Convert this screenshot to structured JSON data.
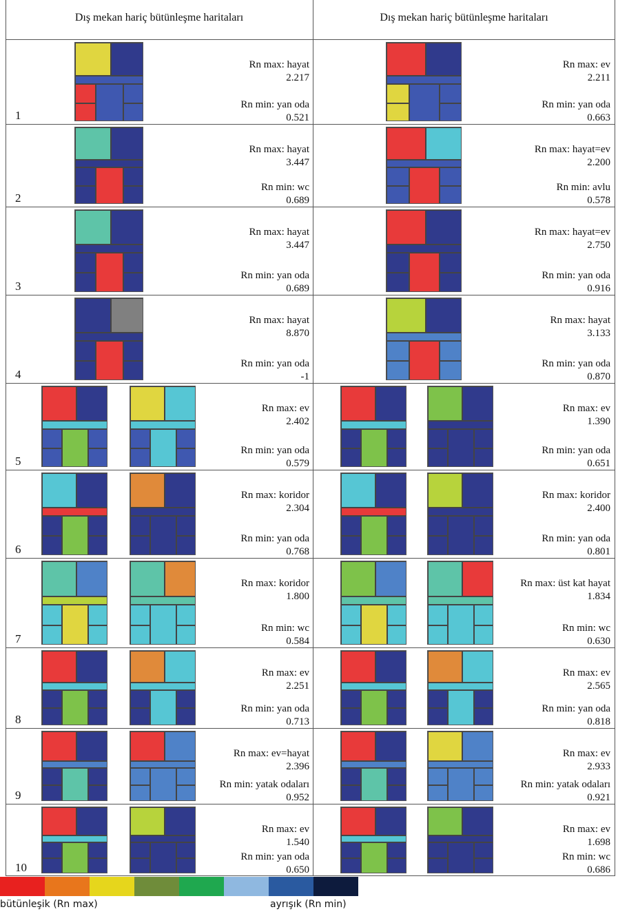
{
  "headers": {
    "left": "Dış mekan hariç bütünleşme haritaları",
    "right": "Dış mekan hariç bütünleşme haritaları"
  },
  "rows": [
    {
      "num": "1",
      "left": {
        "max_label": "Rn max: hayat",
        "max_value": "2.217",
        "min_label": "Rn min: yan oda",
        "min_value": "0.521"
      },
      "right": {
        "max_label": "Rn max: ev",
        "max_value": "2.211",
        "min_label": "Rn min: yan oda",
        "min_value": "0.663"
      }
    },
    {
      "num": "2",
      "left": {
        "max_label": "Rn max: hayat",
        "max_value": "3.447",
        "min_label": "Rn min: wc",
        "min_value": "0.689"
      },
      "right": {
        "max_label": "Rn max: hayat=ev",
        "max_value": "2.200",
        "min_label": "Rn min: avlu",
        "min_value": "0.578"
      }
    },
    {
      "num": "3",
      "left": {
        "max_label": "Rn max: hayat",
        "max_value": "3.447",
        "min_label": "Rn min: yan oda",
        "min_value": "0.689"
      },
      "right": {
        "max_label": "Rn max: hayat=ev",
        "max_value": "2.750",
        "min_label": "Rn min: yan oda",
        "min_value": "0.916"
      }
    },
    {
      "num": "4",
      "left": {
        "max_label": "Rn max: hayat",
        "max_value": "8.870",
        "min_label": "Rn min: yan oda",
        "min_value": "-1"
      },
      "right": {
        "max_label": "Rn max: hayat",
        "max_value": "3.133",
        "min_label": "Rn min: yan oda",
        "min_value": "0.870"
      }
    },
    {
      "num": "5",
      "left": {
        "max_label": "Rn max: ev",
        "max_value": "2.402",
        "min_label": "Rn min: yan oda",
        "min_value": "0.579"
      },
      "right": {
        "max_label": "Rn max: ev",
        "max_value": "1.390",
        "min_label": "Rn min: yan oda",
        "min_value": "0.651"
      }
    },
    {
      "num": "6",
      "left": {
        "max_label": "Rn max: koridor",
        "max_value": "2.304",
        "min_label": "Rn min: yan oda",
        "min_value": "0.768"
      },
      "right": {
        "max_label": "Rn max: koridor",
        "max_value": "2.400",
        "min_label": "Rn min: yan oda",
        "min_value": "0.801"
      }
    },
    {
      "num": "7",
      "left": {
        "max_label": "Rn max:  koridor",
        "max_value": "1.800",
        "min_label": "Rn min: wc",
        "min_value": "0.584"
      },
      "right": {
        "max_label": "Rn max:  üst kat hayat",
        "max_value": "1.834",
        "min_label": "Rn min: wc",
        "min_value": "0.630"
      }
    },
    {
      "num": "8",
      "left": {
        "max_label": "Rn max: ev",
        "max_value": "2.251",
        "min_label": "Rn min: yan oda",
        "min_value": "0.713"
      },
      "right": {
        "max_label": "Rn max: ev",
        "max_value": "2.565",
        "min_label": "Rn min: yan oda",
        "min_value": "0.818"
      }
    },
    {
      "num": "9",
      "left": {
        "max_label": "Rn max: ev=hayat",
        "max_value": "2.396",
        "min_label": "Rn min: yatak odaları",
        "min_value": "0.952"
      },
      "right": {
        "max_label": "Rn max: ev",
        "max_value": "2.933",
        "min_label": "Rn min: yatak odaları",
        "min_value": "0.921"
      }
    },
    {
      "num": "10",
      "left": {
        "max_label": "Rn max: ev",
        "max_value": "1.540",
        "min_label": "Rn min: yan oda",
        "min_value": "0.650"
      },
      "right": {
        "max_label": "Rn max: ev",
        "max_value": "1.698",
        "min_label": "Rn min: wc",
        "min_value": "0.686"
      }
    }
  ],
  "legend": {
    "colors": [
      "#e8211f",
      "#e8761c",
      "#e6d61c",
      "#6f8c3a",
      "#1fa84f",
      "#8fb8e0",
      "#2a5aa0",
      "#0d1b3d"
    ],
    "left_label": "bütünleşik (Rn max)",
    "right_label": "ayrışık (Rn min)"
  },
  "palette": {
    "red": "#e83a3a",
    "orange": "#e08a3a",
    "yellow": "#e0d640",
    "lime": "#b7d33c",
    "green": "#7ec24a",
    "teal": "#5ec4a8",
    "cyan": "#56c6d4",
    "lblue": "#4f82c8",
    "blue": "#3f58b0",
    "navy": "#303a8c",
    "gray": "#808080"
  },
  "plans": [
    {
      "left": [
        [
          "yellow",
          "navy",
          "blue",
          "red",
          "blue",
          "blue",
          "cyan"
        ]
      ],
      "right": [
        [
          "red",
          "navy",
          "blue",
          "yellow",
          "blue",
          "blue",
          "cyan"
        ]
      ]
    },
    {
      "left": [
        [
          "teal",
          "navy",
          "red",
          "navy",
          "navy",
          "navy"
        ]
      ],
      "right": [
        [
          "red",
          "cyan",
          "red",
          "blue",
          "blue",
          "blue"
        ]
      ]
    },
    {
      "left": [
        [
          "teal",
          "navy",
          "red",
          "navy",
          "navy",
          "navy"
        ]
      ],
      "right": [
        [
          "red",
          "navy",
          "red",
          "navy",
          "navy",
          "navy"
        ]
      ]
    },
    {
      "left": [
        [
          "navy",
          "gray",
          "red",
          "navy",
          "navy",
          "navy"
        ]
      ],
      "right": [
        [
          "lime",
          "navy",
          "red",
          "lblue",
          "lblue",
          "lblue"
        ]
      ]
    },
    {
      "left": [
        [
          "red",
          "navy",
          "green",
          "blue",
          "blue",
          "cyan"
        ],
        [
          "yellow",
          "cyan",
          "cyan",
          "blue",
          "blue",
          "cyan"
        ]
      ],
      "right": [
        [
          "red",
          "navy",
          "green",
          "navy",
          "navy",
          "cyan"
        ],
        [
          "green",
          "navy",
          "navy",
          "navy",
          "navy",
          "navy"
        ]
      ]
    },
    {
      "left": [
        [
          "cyan",
          "navy",
          "green",
          "navy",
          "navy",
          "red"
        ],
        [
          "orange",
          "navy",
          "navy",
          "navy",
          "navy",
          "navy"
        ]
      ],
      "right": [
        [
          "cyan",
          "navy",
          "green",
          "navy",
          "navy",
          "red"
        ],
        [
          "lime",
          "navy",
          "navy",
          "navy",
          "navy",
          "navy"
        ]
      ]
    },
    {
      "left": [
        [
          "teal",
          "lblue",
          "yellow",
          "cyan",
          "cyan",
          "lime"
        ],
        [
          "teal",
          "orange",
          "cyan",
          "cyan",
          "cyan",
          "teal"
        ]
      ],
      "right": [
        [
          "green",
          "lblue",
          "yellow",
          "cyan",
          "cyan",
          "teal"
        ],
        [
          "teal",
          "red",
          "cyan",
          "cyan",
          "cyan",
          "teal"
        ]
      ]
    },
    {
      "left": [
        [
          "red",
          "navy",
          "green",
          "navy",
          "navy",
          "cyan"
        ],
        [
          "orange",
          "cyan",
          "cyan",
          "navy",
          "navy",
          "cyan"
        ]
      ],
      "right": [
        [
          "red",
          "navy",
          "green",
          "navy",
          "navy",
          "cyan"
        ],
        [
          "orange",
          "cyan",
          "cyan",
          "navy",
          "navy",
          "cyan"
        ]
      ]
    },
    {
      "left": [
        [
          "red",
          "navy",
          "teal",
          "navy",
          "navy",
          "lblue"
        ],
        [
          "red",
          "lblue",
          "lblue",
          "lblue",
          "lblue",
          "lblue"
        ]
      ],
      "right": [
        [
          "red",
          "navy",
          "teal",
          "navy",
          "navy",
          "lblue"
        ],
        [
          "yellow",
          "lblue",
          "lblue",
          "lblue",
          "lblue",
          "lblue"
        ]
      ]
    },
    {
      "left": [
        [
          "red",
          "navy",
          "green",
          "navy",
          "navy",
          "cyan"
        ],
        [
          "lime",
          "navy",
          "navy",
          "navy",
          "navy",
          "navy"
        ]
      ],
      "right": [
        [
          "red",
          "navy",
          "green",
          "navy",
          "navy",
          "cyan"
        ],
        [
          "green",
          "navy",
          "navy",
          "navy",
          "navy",
          "navy"
        ]
      ]
    }
  ]
}
